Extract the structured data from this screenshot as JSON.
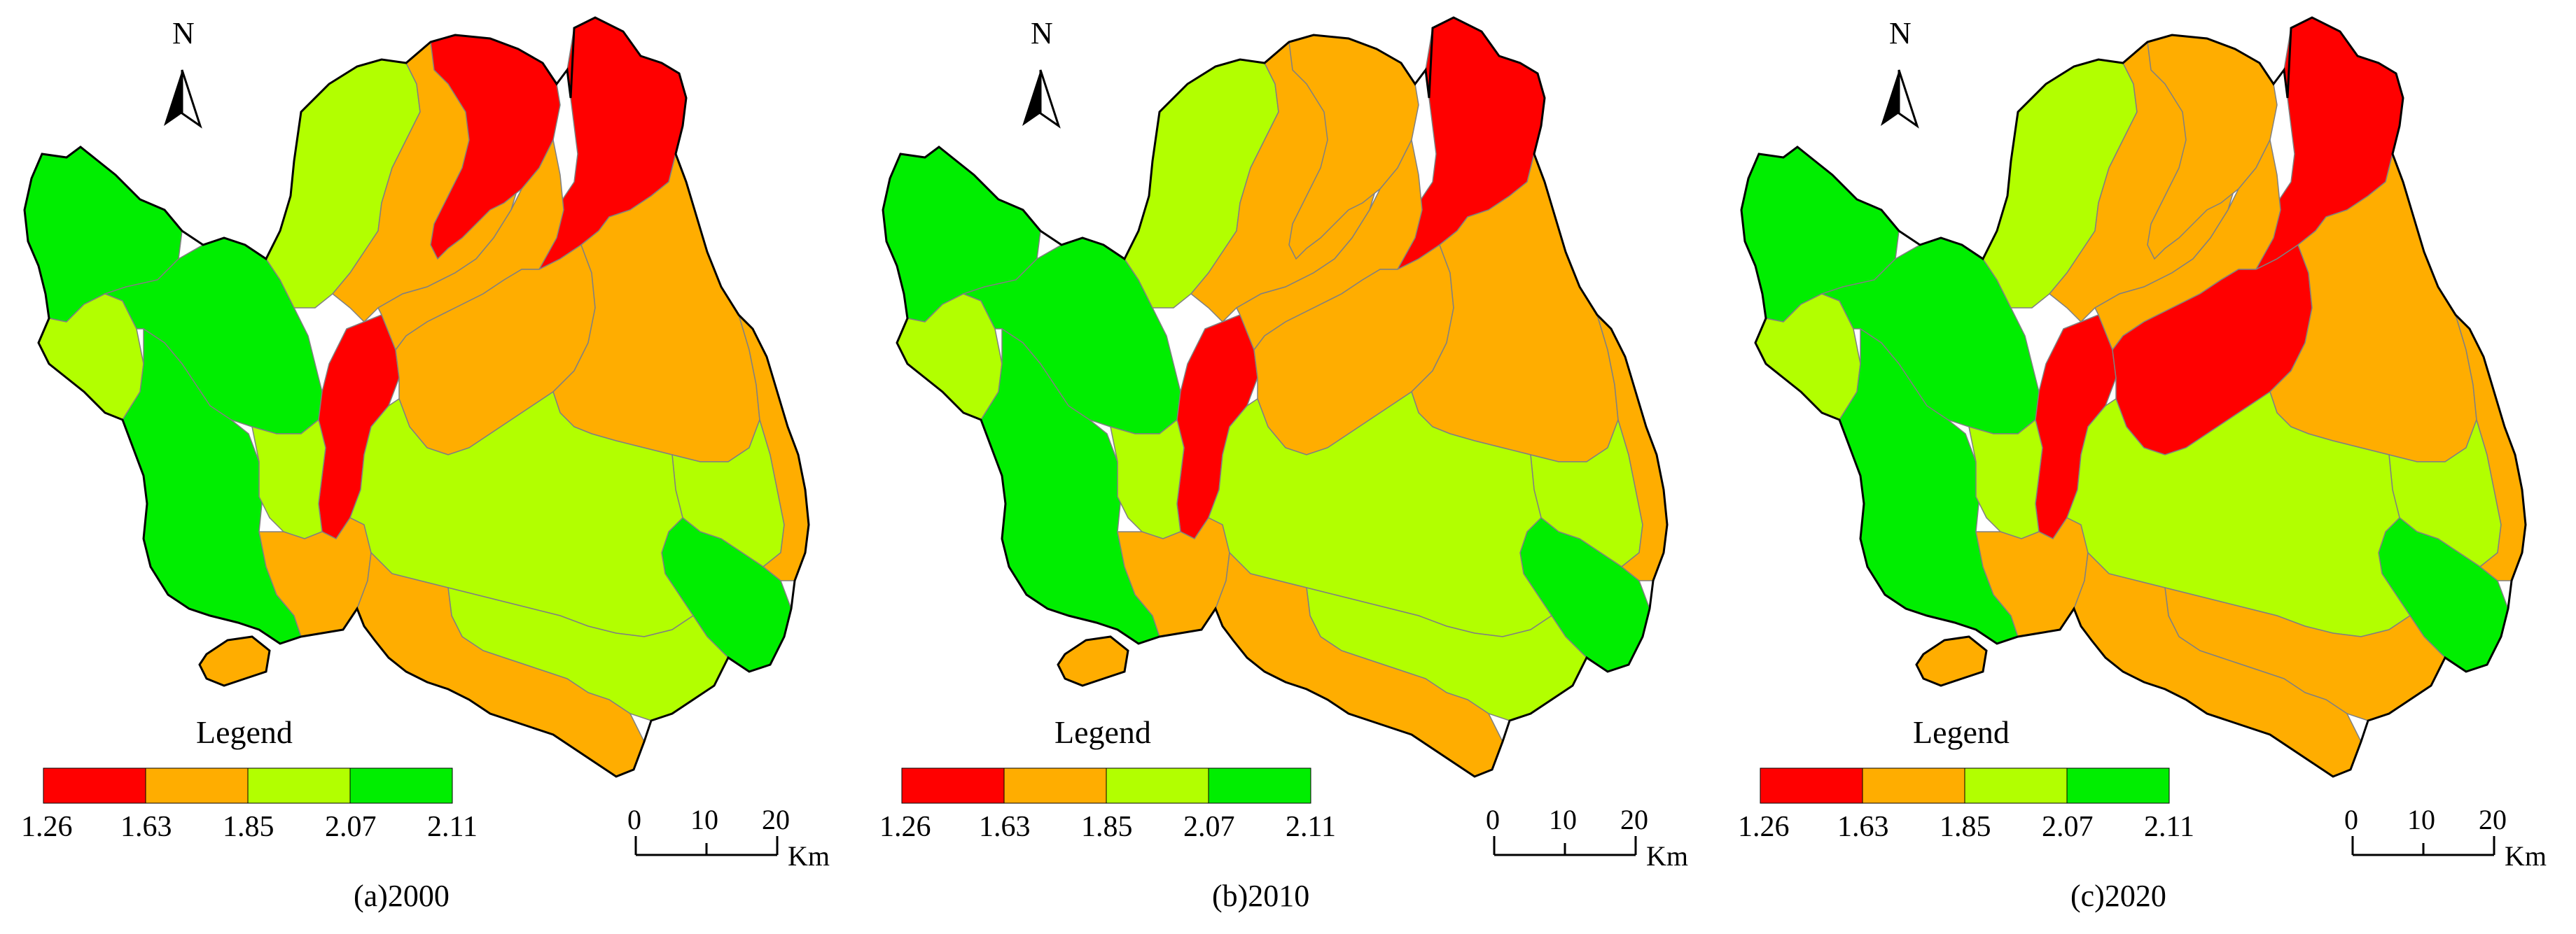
{
  "classes": {
    "c1": "#ff0000",
    "c2": "#ffad00",
    "c3": "#b2ff00",
    "c4": "#00ee00",
    "boundary": "#808080",
    "outline": "#000000"
  },
  "legend": {
    "title": "Legend",
    "breaks": [
      "1.26",
      "1.63",
      "1.85",
      "2.07",
      "2.11"
    ],
    "colors": [
      "#ff0000",
      "#ffad00",
      "#b2ff00",
      "#00ee00"
    ]
  },
  "north_arrow": {
    "label": "N",
    "icon": "north-arrow-icon"
  },
  "scale_bar": {
    "ticks": [
      "0",
      "10",
      "20"
    ],
    "unit": "Km"
  },
  "panels": [
    {
      "caption": "(a)2000",
      "region_class": {
        "northwest": "c4",
        "west_hills": "c4",
        "west_strip": "c3",
        "southwest": "c4",
        "sw_islet": "c2",
        "north_upper": "c3",
        "north_band_w": "c2",
        "north_band_mid": "c1",
        "northeast": "c1",
        "center_strip": "c1",
        "center_west": "c3",
        "center_north": "c2",
        "center_east": "c2",
        "inner_east": "c2",
        "east_block": "c3",
        "east_green": "c4",
        "south_center": "c3",
        "south_west_inner": "c2",
        "south_east": "c3",
        "south_rim": "c2",
        "far_east_strip": "c2"
      }
    },
    {
      "caption": "(b)2010",
      "region_class": {
        "northwest": "c4",
        "west_hills": "c4",
        "west_strip": "c3",
        "southwest": "c4",
        "sw_islet": "c2",
        "north_upper": "c3",
        "north_band_w": "c2",
        "north_band_mid": "c2",
        "northeast": "c1",
        "center_strip": "c1",
        "center_west": "c3",
        "center_north": "c2",
        "center_east": "c2",
        "inner_east": "c2",
        "east_block": "c3",
        "east_green": "c4",
        "south_center": "c3",
        "south_west_inner": "c2",
        "south_east": "c3",
        "south_rim": "c2",
        "far_east_strip": "c2"
      }
    },
    {
      "caption": "(c)2020",
      "region_class": {
        "northwest": "c4",
        "west_hills": "c4",
        "west_strip": "c3",
        "southwest": "c4",
        "sw_islet": "c2",
        "north_upper": "c3",
        "north_band_w": "c2",
        "north_band_mid": "c2",
        "northeast": "c1",
        "center_strip": "c1",
        "center_west": "c3",
        "center_north": "c2",
        "center_east": "c1",
        "inner_east": "c2",
        "east_block": "c3",
        "east_green": "c4",
        "south_center": "c3",
        "south_west_inner": "c2",
        "south_east": "c2",
        "south_rim": "c2",
        "far_east_strip": "c2"
      }
    }
  ]
}
